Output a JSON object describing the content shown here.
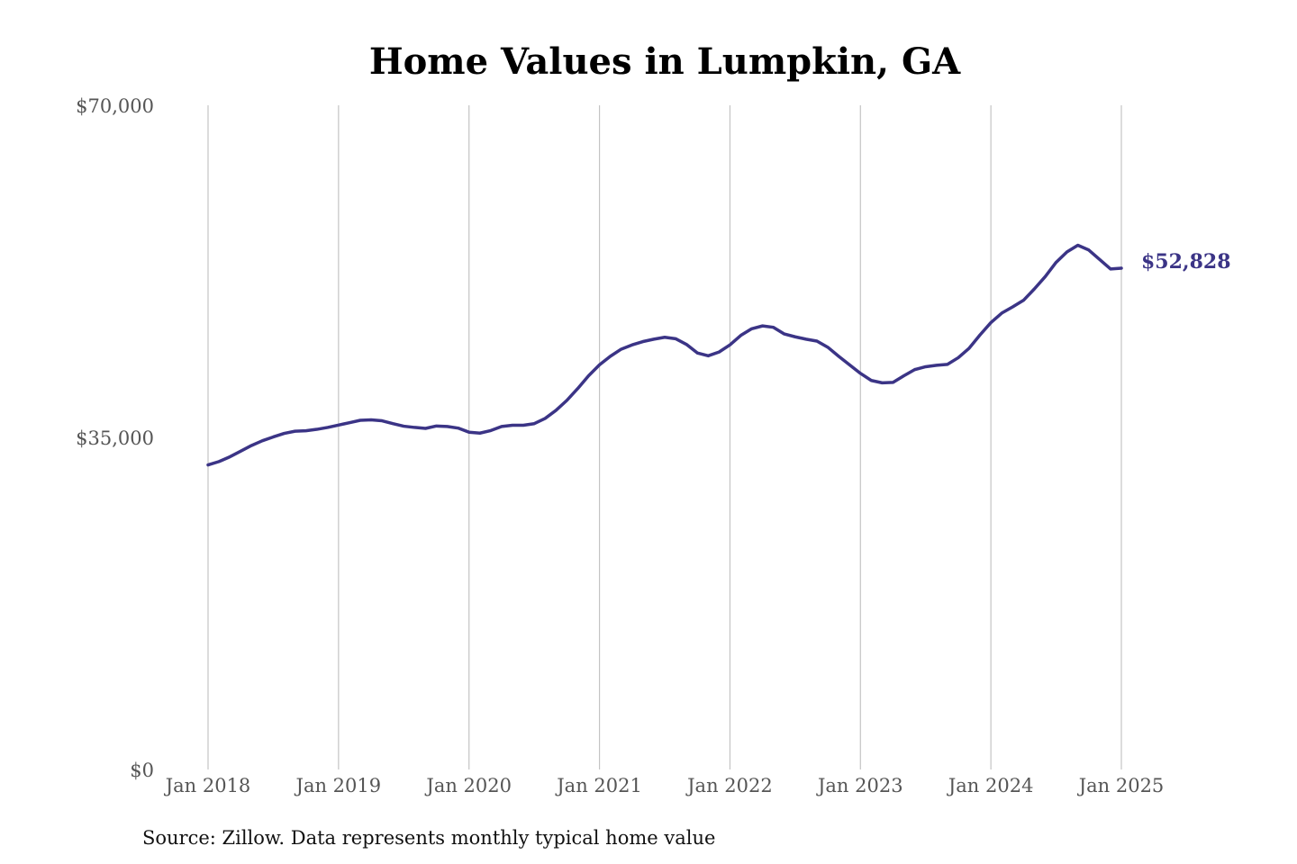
{
  "chart_data": {
    "type": "line",
    "title": "Home Values in Lumpkin, GA",
    "xlabel": "",
    "ylabel": "",
    "x_ticks": [
      "Jan 2018",
      "Jan 2019",
      "Jan 2020",
      "Jan 2021",
      "Jan 2022",
      "Jan 2023",
      "Jan 2024",
      "Jan 2025"
    ],
    "y_ticks": [
      "$0",
      "$35,000",
      "$70,000"
    ],
    "ylim": [
      0,
      70000
    ],
    "xlim": [
      "2018-01",
      "2025-01"
    ],
    "grid": "vertical",
    "series": [
      {
        "color": "#3b3486",
        "end_label": "$52,828",
        "x": [
          "2018-01",
          "2018-02",
          "2018-03",
          "2018-04",
          "2018-05",
          "2018-06",
          "2018-07",
          "2018-08",
          "2018-09",
          "2018-10",
          "2018-11",
          "2018-12",
          "2019-01",
          "2019-02",
          "2019-03",
          "2019-04",
          "2019-05",
          "2019-06",
          "2019-07",
          "2019-08",
          "2019-09",
          "2019-10",
          "2019-11",
          "2019-12",
          "2020-01",
          "2020-02",
          "2020-03",
          "2020-04",
          "2020-05",
          "2020-06",
          "2020-07",
          "2020-08",
          "2020-09",
          "2020-10",
          "2020-11",
          "2020-12",
          "2021-01",
          "2021-02",
          "2021-03",
          "2021-04",
          "2021-05",
          "2021-06",
          "2021-07",
          "2021-08",
          "2021-09",
          "2021-10",
          "2021-11",
          "2021-12",
          "2022-01",
          "2022-02",
          "2022-03",
          "2022-04",
          "2022-05",
          "2022-06",
          "2022-07",
          "2022-08",
          "2022-09",
          "2022-10",
          "2022-11",
          "2022-12",
          "2023-01",
          "2023-02",
          "2023-03",
          "2023-04",
          "2023-05",
          "2023-06",
          "2023-07",
          "2023-08",
          "2023-09",
          "2023-10",
          "2023-11",
          "2023-12",
          "2024-01",
          "2024-02",
          "2024-03",
          "2024-04",
          "2024-05",
          "2024-06",
          "2024-07",
          "2024-08",
          "2024-09",
          "2024-10",
          "2024-11",
          "2024-12",
          "2025-01"
        ],
        "values": [
          32100,
          32450,
          32950,
          33550,
          34150,
          34650,
          35050,
          35420,
          35650,
          35700,
          35850,
          36050,
          36300,
          36550,
          36800,
          36850,
          36750,
          36450,
          36180,
          36050,
          35950,
          36200,
          36150,
          35980,
          35550,
          35450,
          35720,
          36150,
          36280,
          36280,
          36450,
          37000,
          37850,
          38900,
          40150,
          41500,
          42650,
          43550,
          44300,
          44750,
          45100,
          45350,
          45550,
          45400,
          44800,
          43900,
          43600,
          44000,
          44750,
          45750,
          46450,
          46750,
          46600,
          45900,
          45600,
          45350,
          45150,
          44500,
          43550,
          42650,
          41750,
          41000,
          40750,
          40800,
          41500,
          42150,
          42450,
          42600,
          42700,
          43400,
          44400,
          45800,
          47100,
          48100,
          48750,
          49450,
          50650,
          51950,
          53450,
          54550,
          55250,
          54750,
          53750,
          52750,
          52828
        ]
      }
    ]
  },
  "source_note": "Source: Zillow. Data represents monthly typical home value"
}
